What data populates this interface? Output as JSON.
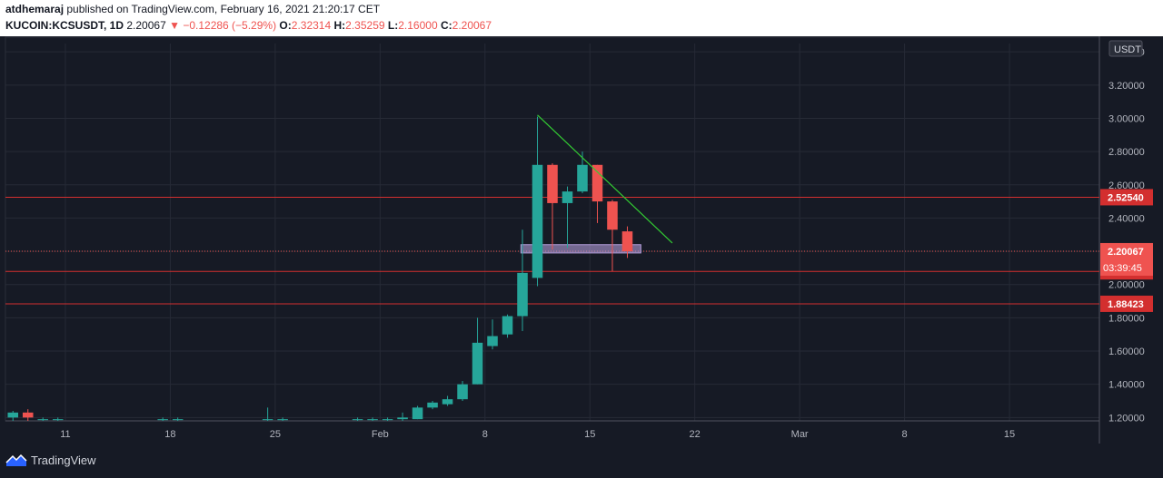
{
  "header": {
    "author": "atdhemaraj",
    "published": "published on TradingView.com, February 16, 2021 21:20:17 CET",
    "symbol": "KUCOIN:KCSUSDT, 1D",
    "last": "2.20067",
    "change": "−0.12286 (−5.29%)",
    "open_label": "O:",
    "open": "2.32314",
    "high_label": "H:",
    "high": "2.35259",
    "low_label": "L:",
    "low": "2.16000",
    "close_label": "C:",
    "close": "2.20067"
  },
  "footer": {
    "brand": "TradingView"
  },
  "colors": {
    "up": "#26a69a",
    "down": "#ef5350",
    "hline": "#d32f2f",
    "trend": "#33cc33",
    "zone": "#b39ddb",
    "grid": "#262a36",
    "axisText": "#b2b5be",
    "bg": "#161a25"
  },
  "chart_data": {
    "type": "candlestick",
    "currency": "USDT",
    "x_range": [
      "2021-01-07",
      "2021-03-21"
    ],
    "ylim": [
      1.18,
      3.45
    ],
    "y_ticks": [
      1.2,
      1.4,
      1.6,
      1.8,
      2.0,
      2.2,
      2.4,
      2.6,
      2.8,
      3.0,
      3.2,
      3.4
    ],
    "x_ticks": [
      {
        "date": "2021-01-11",
        "label": "11"
      },
      {
        "date": "2021-01-18",
        "label": "18"
      },
      {
        "date": "2021-01-25",
        "label": "25"
      },
      {
        "date": "2021-02-01",
        "label": "Feb"
      },
      {
        "date": "2021-02-08",
        "label": "8"
      },
      {
        "date": "2021-02-15",
        "label": "15"
      },
      {
        "date": "2021-02-22",
        "label": "22"
      },
      {
        "date": "2021-03-01",
        "label": "Mar"
      },
      {
        "date": "2021-03-08",
        "label": "8"
      },
      {
        "date": "2021-03-15",
        "label": "15"
      }
    ],
    "candles": [
      {
        "date": "2021-01-07",
        "o": 1.2,
        "h": 1.24,
        "l": 1.18,
        "c": 1.23
      },
      {
        "date": "2021-01-08",
        "o": 1.23,
        "h": 1.25,
        "l": 1.18,
        "c": 1.2
      },
      {
        "date": "2021-01-09",
        "o": 1.19,
        "h": 1.2,
        "l": 1.18,
        "c": 1.19
      },
      {
        "date": "2021-01-10",
        "o": 1.19,
        "h": 1.2,
        "l": 1.18,
        "c": 1.19
      },
      {
        "date": "2021-01-17",
        "o": 1.19,
        "h": 1.2,
        "l": 1.18,
        "c": 1.19
      },
      {
        "date": "2021-01-18",
        "o": 1.19,
        "h": 1.2,
        "l": 1.18,
        "c": 1.19
      },
      {
        "date": "2021-01-24",
        "o": 1.19,
        "h": 1.26,
        "l": 1.18,
        "c": 1.19
      },
      {
        "date": "2021-01-25",
        "o": 1.19,
        "h": 1.2,
        "l": 1.18,
        "c": 1.19
      },
      {
        "date": "2021-01-30",
        "o": 1.19,
        "h": 1.2,
        "l": 1.18,
        "c": 1.19
      },
      {
        "date": "2021-01-31",
        "o": 1.19,
        "h": 1.2,
        "l": 1.18,
        "c": 1.19
      },
      {
        "date": "2021-02-01",
        "o": 1.19,
        "h": 1.2,
        "l": 1.18,
        "c": 1.19
      },
      {
        "date": "2021-02-02",
        "o": 1.19,
        "h": 1.23,
        "l": 1.18,
        "c": 1.2
      },
      {
        "date": "2021-02-03",
        "o": 1.19,
        "h": 1.27,
        "l": 1.19,
        "c": 1.26
      },
      {
        "date": "2021-02-04",
        "o": 1.26,
        "h": 1.3,
        "l": 1.25,
        "c": 1.29
      },
      {
        "date": "2021-02-05",
        "o": 1.28,
        "h": 1.33,
        "l": 1.27,
        "c": 1.31
      },
      {
        "date": "2021-02-06",
        "o": 1.31,
        "h": 1.42,
        "l": 1.3,
        "c": 1.4
      },
      {
        "date": "2021-02-07",
        "o": 1.4,
        "h": 1.8,
        "l": 1.4,
        "c": 1.65
      },
      {
        "date": "2021-02-08",
        "o": 1.63,
        "h": 1.79,
        "l": 1.61,
        "c": 1.69
      },
      {
        "date": "2021-02-09",
        "o": 1.7,
        "h": 1.82,
        "l": 1.68,
        "c": 1.81
      },
      {
        "date": "2021-02-10",
        "o": 1.81,
        "h": 2.33,
        "l": 1.72,
        "c": 2.07
      },
      {
        "date": "2021-02-11",
        "o": 2.04,
        "h": 3.01,
        "l": 1.99,
        "c": 2.72
      },
      {
        "date": "2021-02-12",
        "o": 2.72,
        "h": 2.73,
        "l": 2.21,
        "c": 2.49
      },
      {
        "date": "2021-02-13",
        "o": 2.49,
        "h": 2.59,
        "l": 2.22,
        "c": 2.56
      },
      {
        "date": "2021-02-14",
        "o": 2.56,
        "h": 2.8,
        "l": 2.55,
        "c": 2.72
      },
      {
        "date": "2021-02-15",
        "o": 2.72,
        "h": 2.72,
        "l": 2.37,
        "c": 2.5
      },
      {
        "date": "2021-02-16",
        "o": 2.5,
        "h": 2.51,
        "l": 2.08,
        "c": 2.33
      },
      {
        "date": "2021-02-17",
        "o": 2.32,
        "h": 2.35,
        "l": 2.16,
        "c": 2.2
      }
    ],
    "horizontal_lines": [
      {
        "price": 2.5254,
        "label": "2.52540"
      },
      {
        "price": 2.07932,
        "label": "2.07932"
      },
      {
        "price": 1.88423,
        "label": "1.88423"
      }
    ],
    "last_price": {
      "price": 2.20067,
      "label": "2.20067",
      "countdown": "03:39:45"
    },
    "trendline": {
      "start": {
        "date": "2021-02-11",
        "price": 3.02
      },
      "end": {
        "date": "2021-02-20",
        "price": 2.25
      }
    },
    "zone": {
      "start": "2021-02-10",
      "end": "2021-02-18",
      "top": 2.24,
      "bottom": 2.19
    }
  }
}
